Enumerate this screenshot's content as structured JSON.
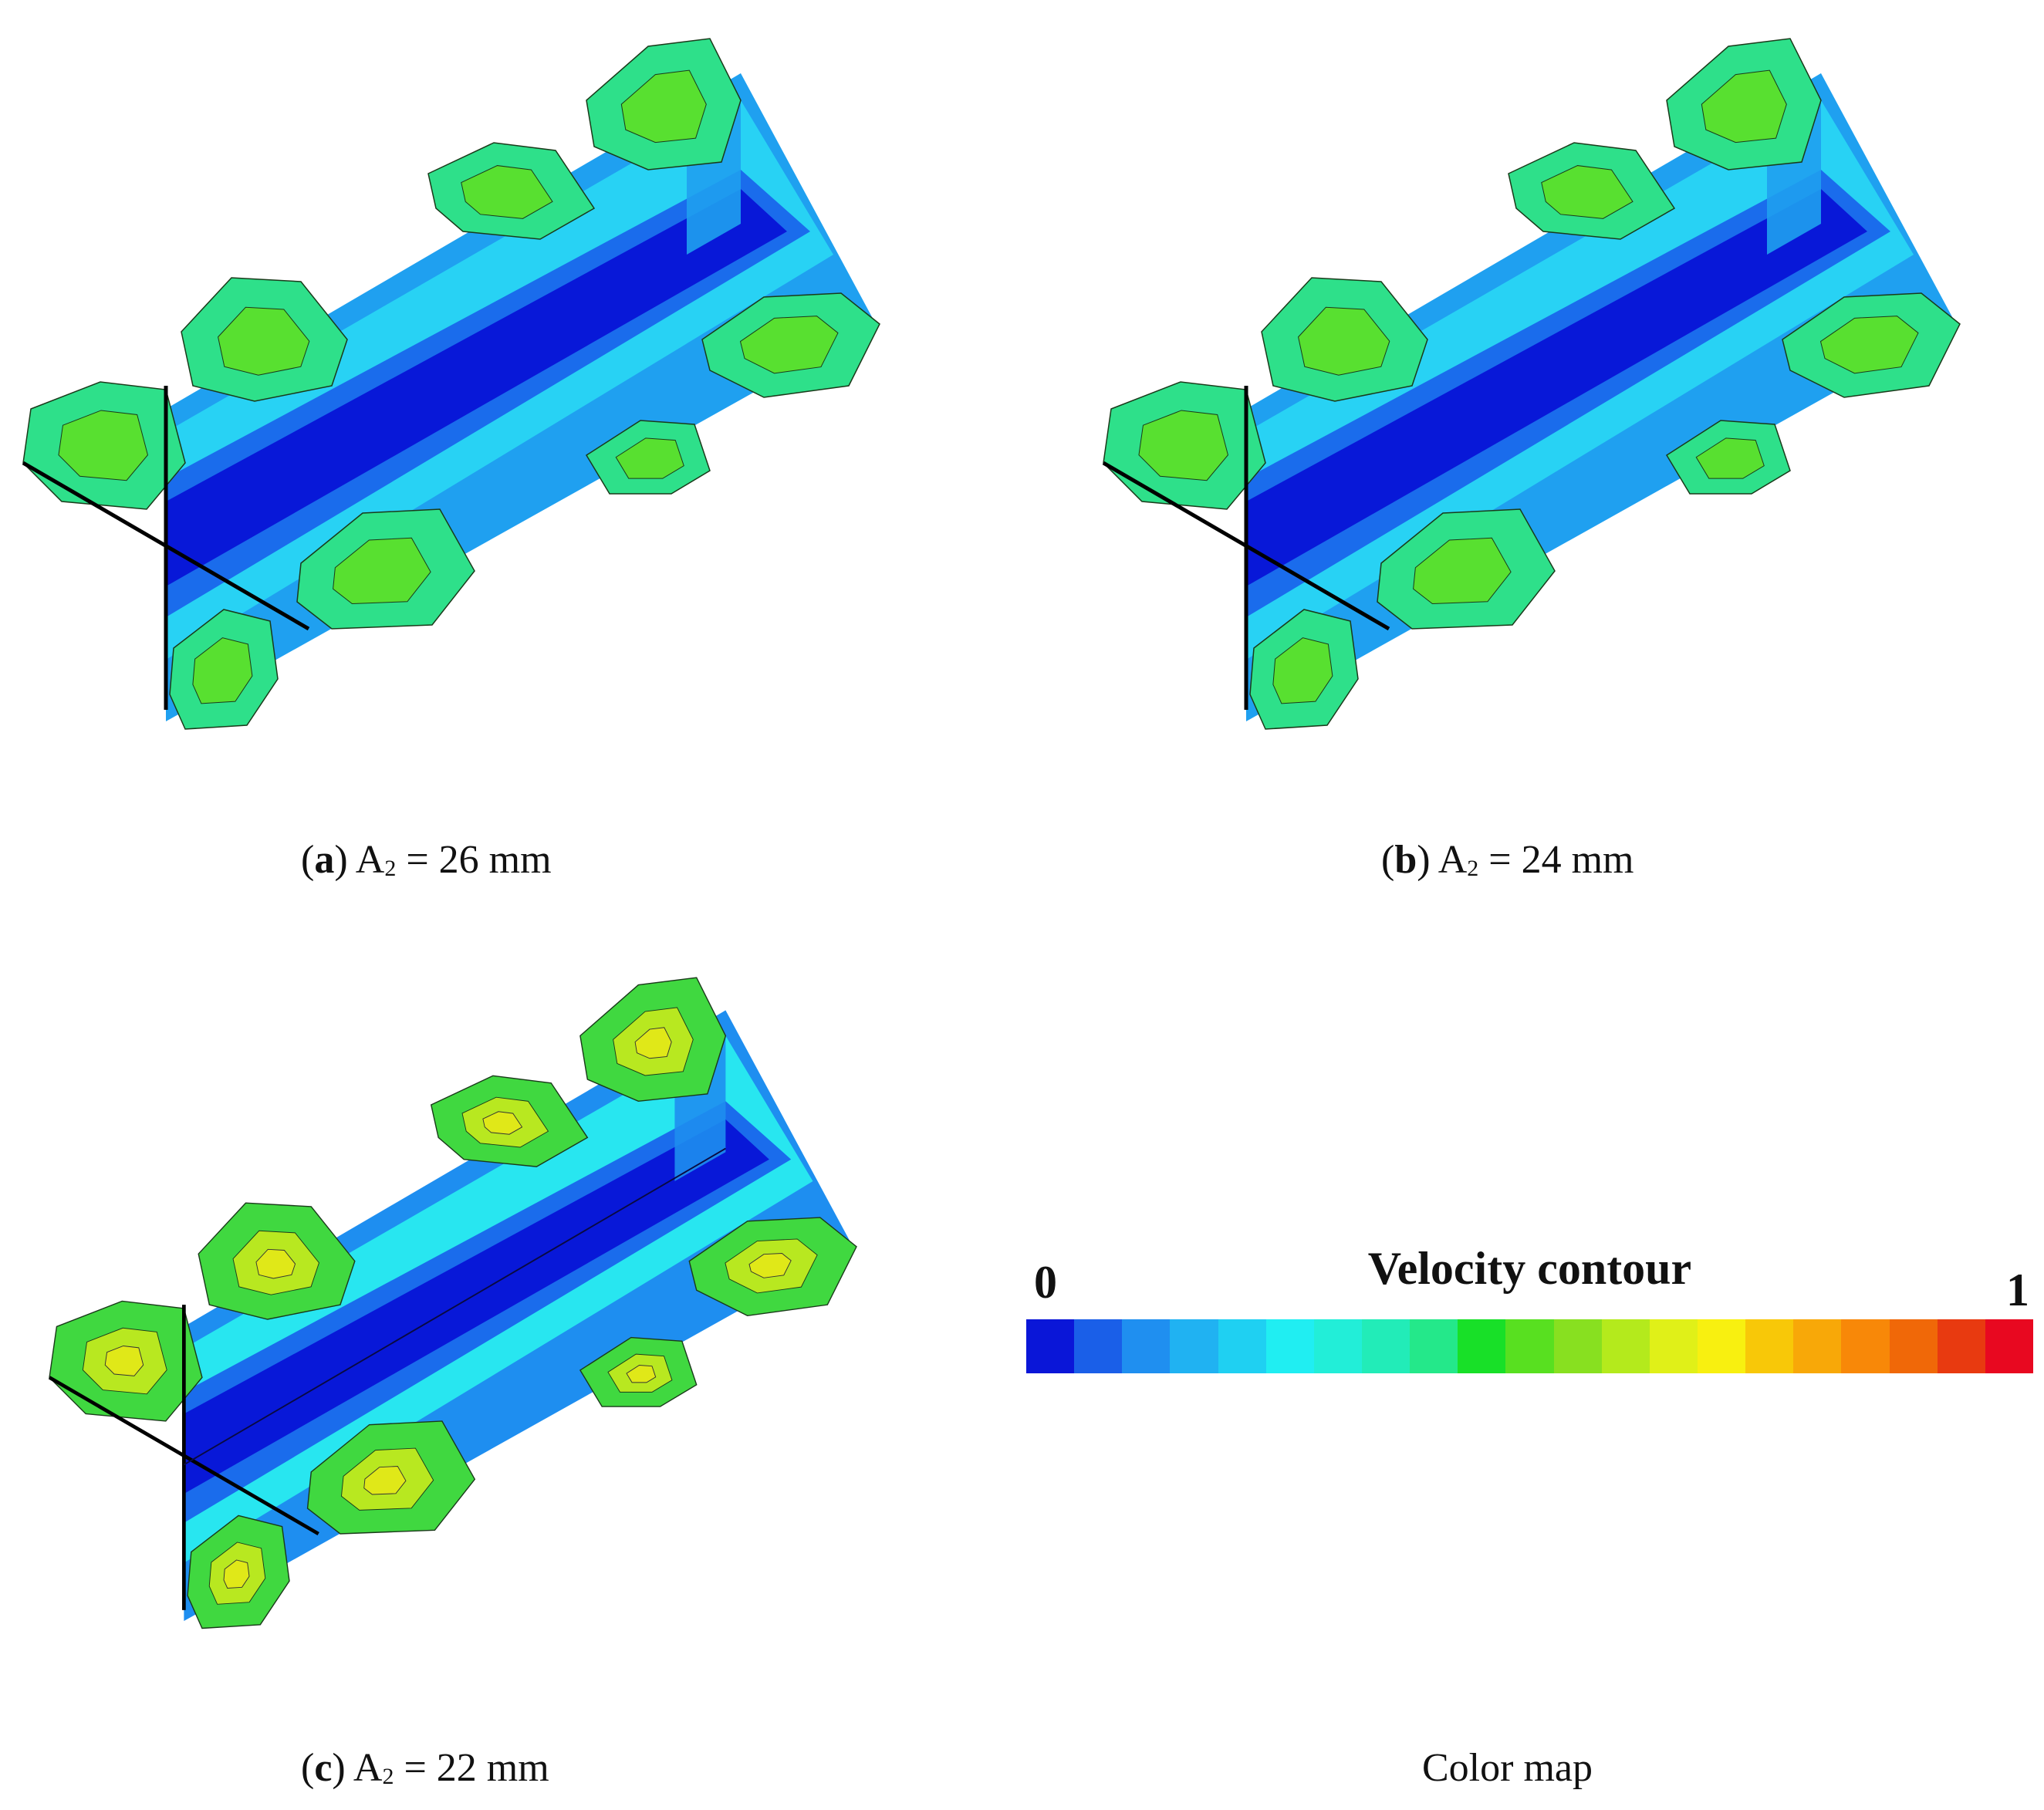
{
  "panels": [
    {
      "id": "a",
      "letter": "a",
      "param": "A",
      "sub": "2",
      "value": " = 26 mm"
    },
    {
      "id": "b",
      "letter": "b",
      "param": "A",
      "sub": "2",
      "value": " = 24 mm"
    },
    {
      "id": "c",
      "letter": "c",
      "param": "A",
      "sub": "2",
      "value": " = 22 mm"
    }
  ],
  "colormap": {
    "caption": "Color map",
    "title": "Velocity contour",
    "min_label": "0",
    "max_label": "1",
    "colors": [
      "#0a16d8",
      "#1a5fe8",
      "#1f8ff0",
      "#20b2f2",
      "#1fd0f2",
      "#20eef2",
      "#22eed8",
      "#22ecb8",
      "#24e88a",
      "#18e028",
      "#58e020",
      "#88e020",
      "#b4ea1c",
      "#e0f018",
      "#f8f010",
      "#f8c808",
      "#f8a808",
      "#f88808",
      "#f06808",
      "#e83a10",
      "#e80820"
    ]
  }
}
